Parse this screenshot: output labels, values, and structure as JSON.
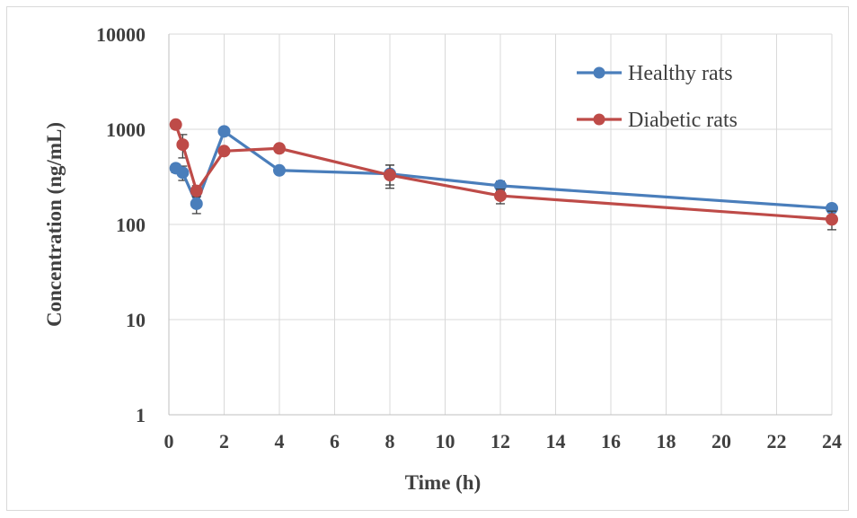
{
  "chart_data": {
    "type": "line",
    "xlabel": "Time (h)",
    "ylabel": "Concentration (ng/mL)",
    "y_scale": "log",
    "xlim": [
      0,
      24
    ],
    "ylim": [
      1,
      10000
    ],
    "x_ticks": [
      "0",
      "2",
      "4",
      "6",
      "8",
      "10",
      "12",
      "14",
      "16",
      "18",
      "20",
      "22",
      "24"
    ],
    "y_ticks": [
      "1",
      "10",
      "100",
      "1000",
      "10000"
    ],
    "grid": true,
    "legend_position": "top-right",
    "series": [
      {
        "name": "Healthy rats",
        "color": "#4a7ebb",
        "x": [
          0.25,
          0.5,
          1,
          2,
          4,
          8,
          12,
          24
        ],
        "y": [
          390,
          350,
          165,
          950,
          370,
          340,
          255,
          148
        ],
        "error": [
          40,
          60,
          35,
          60,
          30,
          80,
          30,
          15
        ]
      },
      {
        "name": "Diabetic rats",
        "color": "#be4b48",
        "x": [
          0.25,
          0.5,
          1,
          2,
          4,
          8,
          12,
          24
        ],
        "y": [
          1120,
          690,
          225,
          590,
          630,
          330,
          200,
          113
        ],
        "error": [
          100,
          190,
          30,
          50,
          60,
          90,
          35,
          25
        ]
      }
    ]
  }
}
